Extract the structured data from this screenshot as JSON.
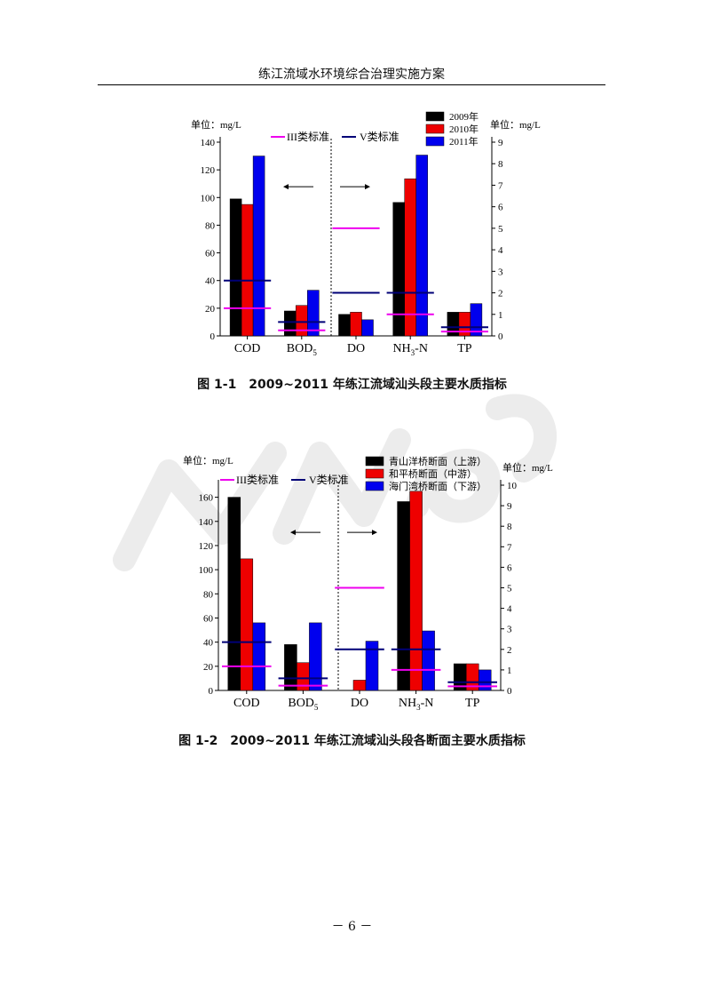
{
  "header": {
    "title": "练江流域水环境综合治理实施方案"
  },
  "footer": {
    "page_number": "－ 6 －"
  },
  "colors": {
    "series": [
      "#000000",
      "#ee0000",
      "#0000ee"
    ],
    "class_iii_line": "#ee00ee",
    "class_v_line": "#000077",
    "watermark": "#e8e8e8"
  },
  "chart_data": [
    {
      "type": "bar",
      "caption": "图 1-1　2009~2011 年练江流域汕头段主要水质指标",
      "categories": [
        "COD",
        "BOD5",
        "DO",
        "NH3-N",
        "TP"
      ],
      "category_labels": [
        {
          "main": "COD",
          "sub": ""
        },
        {
          "main": "BOD",
          "sub": "5"
        },
        {
          "main": "DO",
          "sub": ""
        },
        {
          "main": "NH",
          "sub": "3",
          "tail": "-N"
        },
        {
          "main": "TP",
          "sub": ""
        }
      ],
      "series": [
        {
          "name": "2009年",
          "values": [
            99,
            18,
            1.0,
            6.2,
            1.1
          ]
        },
        {
          "name": "2010年",
          "values": [
            95,
            22,
            1.1,
            7.3,
            1.1
          ]
        },
        {
          "name": "2011年",
          "values": [
            130,
            33,
            0.75,
            8.4,
            1.5
          ]
        }
      ],
      "left_axis": {
        "unit": "单位：mg/L",
        "min": 0,
        "max": 140,
        "ticks": [
          0,
          20,
          40,
          60,
          80,
          100,
          120,
          140
        ],
        "applies_to": [
          "COD",
          "BOD5"
        ]
      },
      "right_axis": {
        "unit": "单位：mg/L",
        "min": 0,
        "max": 9,
        "ticks": [
          0,
          1,
          2,
          3,
          4,
          5,
          6,
          7,
          8,
          9
        ],
        "applies_to": [
          "DO",
          "NH3-N",
          "TP"
        ]
      },
      "standards": {
        "class_iii_label": "III类标准",
        "class_v_label": "V类标准",
        "class_iii": [
          20,
          4,
          5,
          1.0,
          0.2
        ],
        "class_v": [
          40,
          10,
          2,
          2.0,
          0.4
        ]
      }
    },
    {
      "type": "bar",
      "caption": "图 1-2　2009~2011 年练江流域汕头段各断面主要水质指标",
      "categories": [
        "COD",
        "BOD5",
        "DO",
        "NH3-N",
        "TP"
      ],
      "category_labels": [
        {
          "main": "COD",
          "sub": ""
        },
        {
          "main": "BOD",
          "sub": "5"
        },
        {
          "main": "DO",
          "sub": ""
        },
        {
          "main": "NH",
          "sub": "3",
          "tail": "-N"
        },
        {
          "main": "TP",
          "sub": ""
        }
      ],
      "series": [
        {
          "name": "青山洋桥断面（上游）",
          "values": [
            160,
            38,
            0,
            9.2,
            1.3
          ]
        },
        {
          "name": "和平桥断面（中游）",
          "values": [
            109,
            23,
            0.5,
            9.7,
            1.3
          ]
        },
        {
          "name": "海门湾桥断面（下游）",
          "values": [
            56,
            56,
            2.4,
            2.9,
            1.0
          ]
        }
      ],
      "left_axis": {
        "unit": "单位：mg/L",
        "min": 0,
        "max": 170,
        "ticks": [
          0,
          20,
          40,
          60,
          80,
          100,
          120,
          140,
          160
        ],
        "applies_to": [
          "COD",
          "BOD5"
        ]
      },
      "right_axis": {
        "unit": "单位：mg/L",
        "min": 0,
        "max": 10,
        "ticks": [
          0,
          1,
          2,
          3,
          4,
          5,
          6,
          7,
          8,
          9,
          10
        ],
        "applies_to": [
          "DO",
          "NH3-N",
          "TP"
        ]
      },
      "standards": {
        "class_iii_label": "III类标准",
        "class_v_label": "V类标准",
        "class_iii": [
          20,
          4,
          5,
          1.0,
          0.2
        ],
        "class_v": [
          40,
          10,
          2,
          2.0,
          0.4
        ]
      }
    }
  ]
}
